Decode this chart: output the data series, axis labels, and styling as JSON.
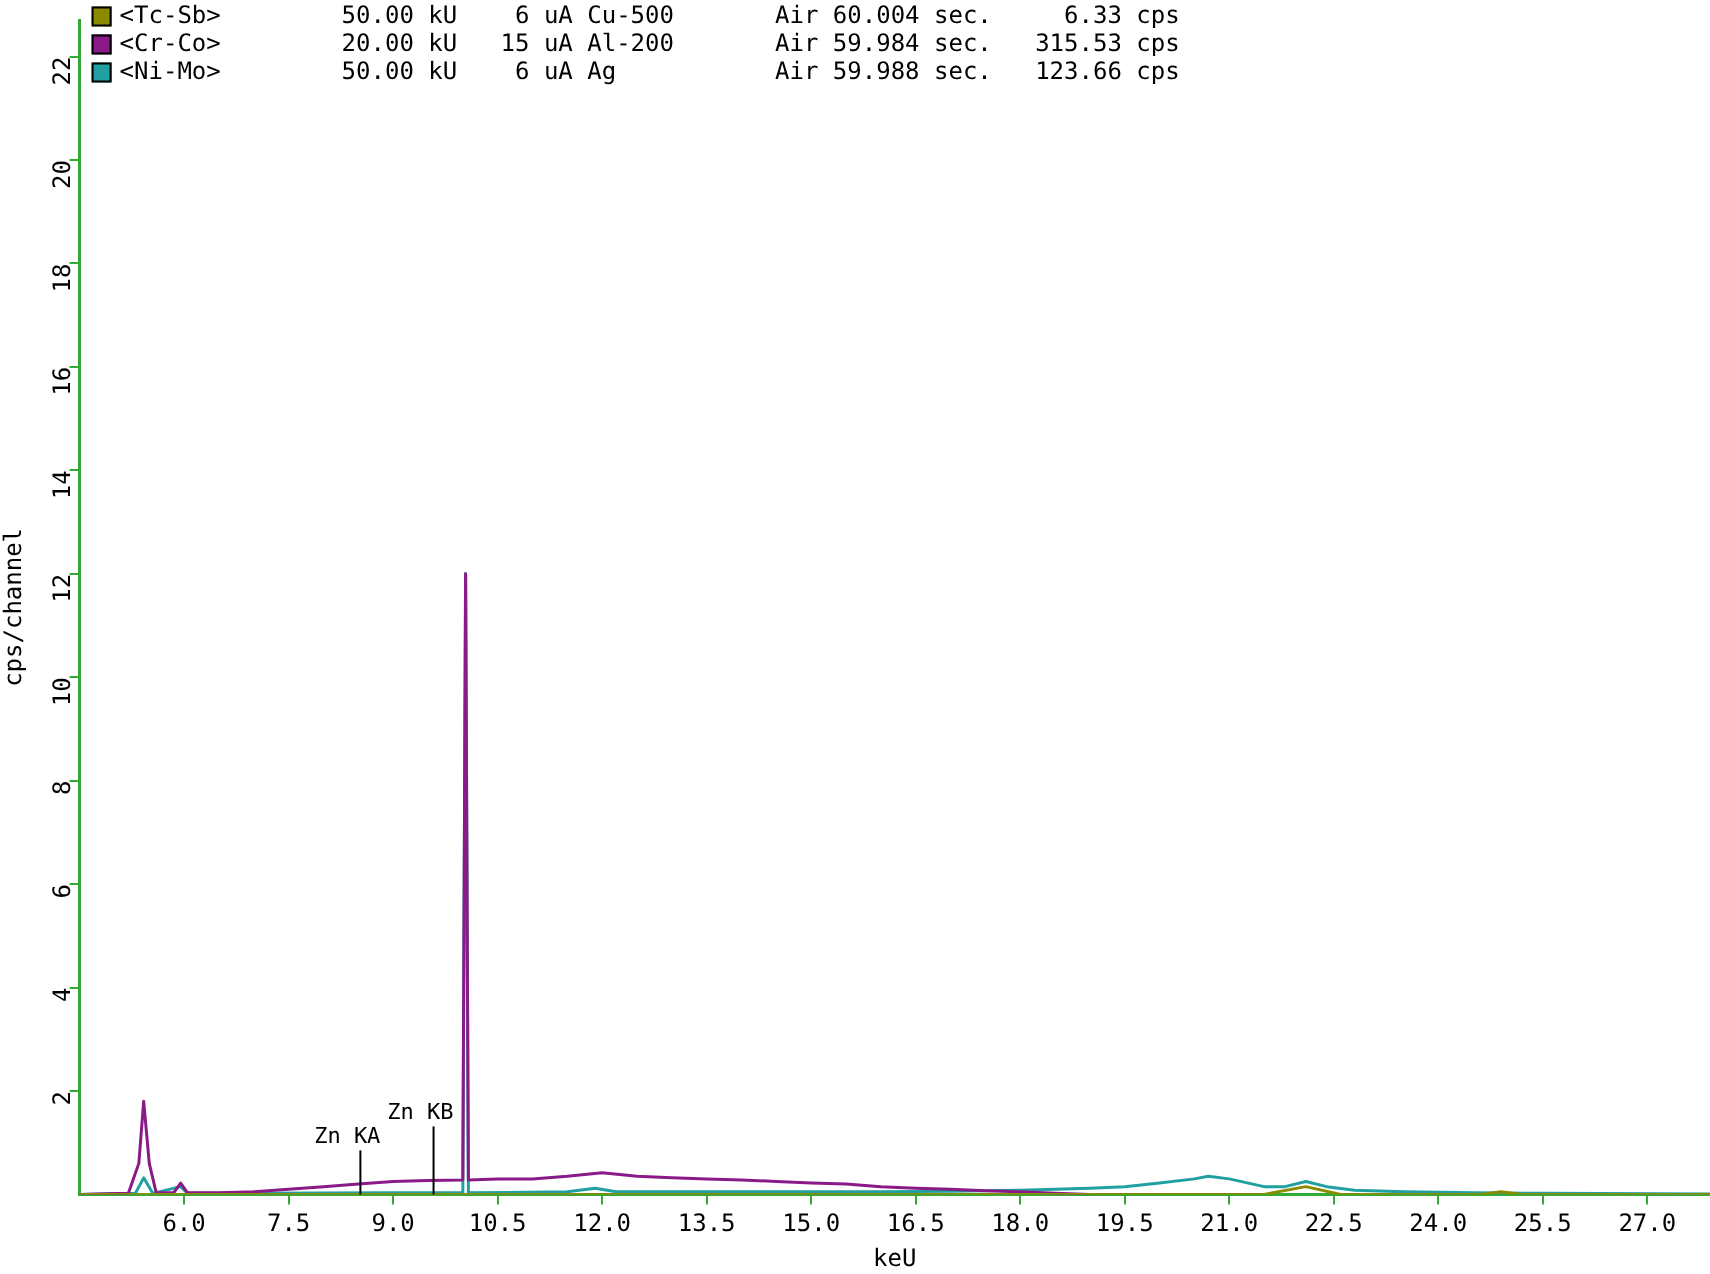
{
  "chart_data": {
    "type": "line",
    "xlabel": "keU",
    "ylabel": "cps/channel",
    "xlim": [
      4.5,
      27.9
    ],
    "ylim": [
      0,
      22.7
    ],
    "xticks": [
      {
        "value": 6,
        "label": "6.0"
      },
      {
        "value": 7.5,
        "label": "7.5"
      },
      {
        "value": 9,
        "label": "9.0"
      },
      {
        "value": 10.5,
        "label": "10.5"
      },
      {
        "value": 12,
        "label": "12.0"
      },
      {
        "value": 13.5,
        "label": "13.5"
      },
      {
        "value": 15,
        "label": "15.0"
      },
      {
        "value": 16.5,
        "label": "16.5"
      },
      {
        "value": 18,
        "label": "18.0"
      },
      {
        "value": 19.5,
        "label": "19.5"
      },
      {
        "value": 21,
        "label": "21.0"
      },
      {
        "value": 22.5,
        "label": "22.5"
      },
      {
        "value": 24,
        "label": "24.0"
      },
      {
        "value": 25.5,
        "label": "25.5"
      },
      {
        "value": 27,
        "label": "27.0"
      }
    ],
    "yticks": [
      2,
      4,
      6,
      8,
      10,
      12,
      14,
      16,
      18,
      20,
      22
    ],
    "grid": false,
    "legend": "top left",
    "marker": "none",
    "ref_lines": [
      {
        "axis": "x",
        "value": 8.53,
        "label": "Zn KA",
        "color": "#000000"
      },
      {
        "axis": "x",
        "value": 9.58,
        "label": "Zn KB",
        "color": "#000000"
      }
    ],
    "annotations": [
      "50.00 kU    6 uA Cu-500       Air 60.004 sec.     6.33 cps",
      "20.00 kU   15 uA Al-200       Air 59.984 sec.   315.53 cps",
      "50.00 kU    6 uA Ag           Air 59.988 sec.   123.66 cps"
    ],
    "series": [
      {
        "name": "<Tc-Sb>",
        "color": "#8b8b00",
        "x": [
          4.5,
          21.5,
          22.1,
          22.6,
          24.6,
          24.9,
          25.2,
          27.9
        ],
        "values": [
          0,
          0,
          0.15,
          0,
          0,
          0.05,
          0,
          0
        ]
      },
      {
        "name": "<Cr-Co>",
        "color": "#8b1a89",
        "x": [
          4.5,
          5.2,
          5.35,
          5.42,
          5.5,
          5.6,
          5.85,
          5.95,
          6.05,
          6.5,
          7,
          7.5,
          8,
          8.5,
          9,
          9.5,
          10,
          10.04,
          10.08,
          10.5,
          11,
          11.5,
          12,
          12.5,
          13,
          13.5,
          14,
          14.5,
          15,
          15.5,
          16,
          16.5,
          17,
          17.5,
          18,
          18.5,
          19
        ],
        "values": [
          0,
          0.02,
          0.6,
          1.8,
          0.6,
          0.03,
          0.03,
          0.22,
          0.03,
          0.03,
          0.05,
          0.1,
          0.15,
          0.2,
          0.25,
          0.27,
          0.28,
          12,
          0.28,
          0.3,
          0.3,
          0.35,
          0.42,
          0.35,
          0.32,
          0.3,
          0.28,
          0.25,
          0.22,
          0.2,
          0.15,
          0.12,
          0.1,
          0.07,
          0.05,
          0.02,
          0
        ]
      },
      {
        "name": "<Ni-Mo>",
        "color": "#20a0a0",
        "x": [
          4.5,
          5.3,
          5.42,
          5.55,
          5.95,
          6.05,
          7,
          9,
          10,
          10.04,
          10.08,
          11.5,
          11.9,
          12.2,
          14,
          16,
          17,
          18,
          19,
          19.5,
          20,
          20.5,
          20.7,
          21,
          21.5,
          21.8,
          22.1,
          22.4,
          22.8,
          23.5,
          24.5,
          25.5,
          27.9
        ],
        "values": [
          0,
          0.02,
          0.32,
          0.02,
          0.15,
          0.02,
          0.02,
          0.03,
          0.03,
          12,
          0.03,
          0.05,
          0.12,
          0.05,
          0.05,
          0.05,
          0.06,
          0.08,
          0.12,
          0.15,
          0.22,
          0.3,
          0.35,
          0.3,
          0.15,
          0.15,
          0.25,
          0.15,
          0.08,
          0.05,
          0.03,
          0.02,
          0.01
        ]
      }
    ]
  }
}
